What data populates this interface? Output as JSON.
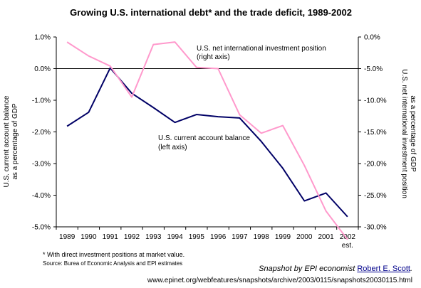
{
  "chart_data": {
    "type": "line",
    "title": "Growing U.S. international debt* and the trade deficit, 1989-2002",
    "x": [
      "1989",
      "1990",
      "1991",
      "1992",
      "1993",
      "1994",
      "1995",
      "1996",
      "1997",
      "1998",
      "1999",
      "2000",
      "2001",
      "2002"
    ],
    "x_sublabel": {
      "2002": "est."
    },
    "left_axis": {
      "label_line1": "U.S. current account balance",
      "label_line2": "as a percentage of GDP",
      "ylim": [
        -5.0,
        1.0
      ],
      "ticks": [
        "1.0%",
        "0.0%",
        "-1.0%",
        "-2.0%",
        "-3.0%",
        "-4.0%",
        "-5.0%"
      ]
    },
    "right_axis": {
      "label_line1": "U.S. net international investment position",
      "label_line2": "as a percentage of GDP",
      "ylim": [
        -30.0,
        0.0
      ],
      "ticks": [
        "0.0%",
        "-5.0%",
        "-10.0%",
        "-15.0%",
        "-20.0%",
        "-25.0%",
        "-30.0%"
      ]
    },
    "series": [
      {
        "name": "U.S. current account balance",
        "annotation_line1": "U.S. current account balance",
        "annotation_line2": "(left axis)",
        "axis": "left",
        "color": "#000066",
        "values": [
          -1.82,
          -1.38,
          0.02,
          -0.78,
          -1.23,
          -1.7,
          -1.45,
          -1.52,
          -1.56,
          -2.3,
          -3.15,
          -4.18,
          -3.93,
          -4.68
        ]
      },
      {
        "name": "U.S. net international investment position",
        "annotation_line1": "U.S. net international investment position",
        "annotation_line2": "(right axis)",
        "axis": "right",
        "color": "#ff99cc",
        "values": [
          -0.8,
          -3.0,
          -4.6,
          -9.5,
          -1.2,
          -0.8,
          -4.8,
          -5.0,
          -12.3,
          -15.2,
          -14.0,
          -20.3,
          -27.5,
          -32.0
        ]
      }
    ],
    "grid": false
  },
  "footnote": "* With direct investment positions at market value.",
  "source": "Source:  Burea of Economic Analysis and EPI estimates",
  "credit_prefix": "Snapshot by EPI economist ",
  "credit_link": "Robert E. Scott",
  "credit_suffix": ".",
  "url": "www.epinet.org/webfeatures/snapshots/archive/2003/0115/snapshots20030115.html"
}
